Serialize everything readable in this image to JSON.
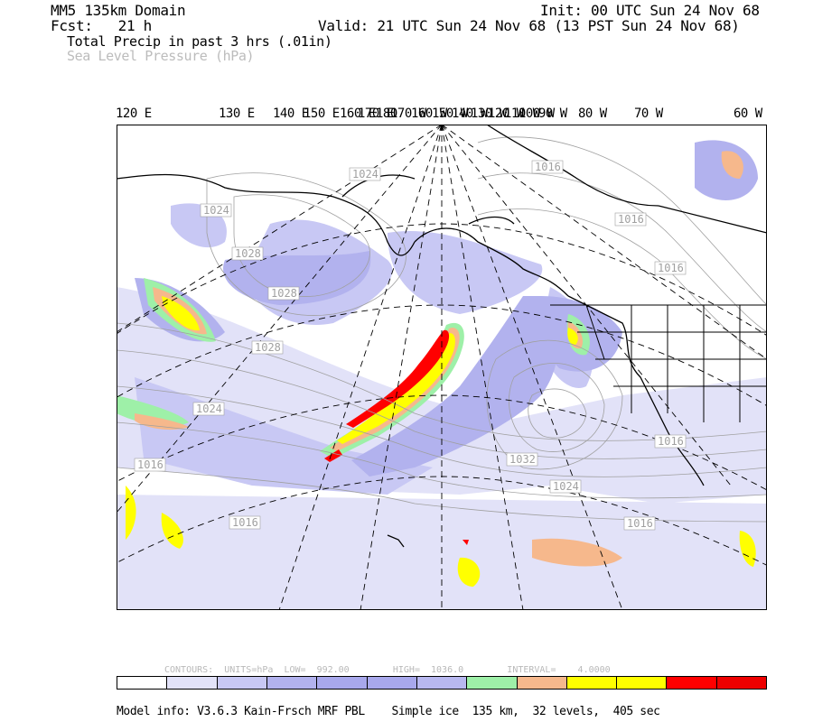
{
  "header": {
    "domain": "MM5 135km Domain",
    "init": "Init: 00 UTC Sun 24 Nov 68",
    "fcst": "Fcst:   21 h",
    "valid": "Valid: 21 UTC Sun 24 Nov 68 (13 PST Sun 24 Nov 68)",
    "field1": "Total Precip in past 3 hrs (.01in)",
    "field2": "Sea Level Pressure (hPa)"
  },
  "longitude_labels": [
    "120 E",
    "130 E",
    "140 E",
    "150 E",
    "160 E",
    "170 E",
    "180",
    "170 W",
    "160 W",
    "150 W",
    "140 W",
    "130 W",
    "120 W",
    "110 W",
    "100 W",
    "90 W",
    "80 W",
    "70 W",
    "60 W"
  ],
  "isobar_labels": [
    "1024",
    "1024",
    "1028",
    "1028",
    "1028",
    "1024",
    "1016",
    "1016",
    "1016",
    "1016",
    "1032",
    "1024",
    "1016",
    "1016",
    "1016"
  ],
  "contours_info": "CONTOURS:  UNITS=hPa  LOW=  992.00        HIGH=  1036.0        INTERVAL=    4.0000",
  "colorbar": [
    "#ffffff",
    "#e2e2f8",
    "#c8c8f4",
    "#b2b2ee",
    "#a8a8ec",
    "#a8a8ec",
    "#b8b8f0",
    "#9ef0a8",
    "#f6b88c",
    "#ffff00",
    "#ffff00",
    "#ff0000",
    "#ee0000"
  ],
  "colors": {
    "precip_light": "#c8c8f4",
    "precip_med": "#a8a8ec",
    "precip_green": "#9ef0a8",
    "precip_orange": "#f6b88c",
    "precip_yellow": "#ffff00",
    "precip_red": "#ff0000",
    "isobar": "#a0a0a0"
  },
  "footer": "Model info: V3.6.3 Kain-Frsch MRF PBL    Simple ice  135 km,  32 levels,  405 sec"
}
